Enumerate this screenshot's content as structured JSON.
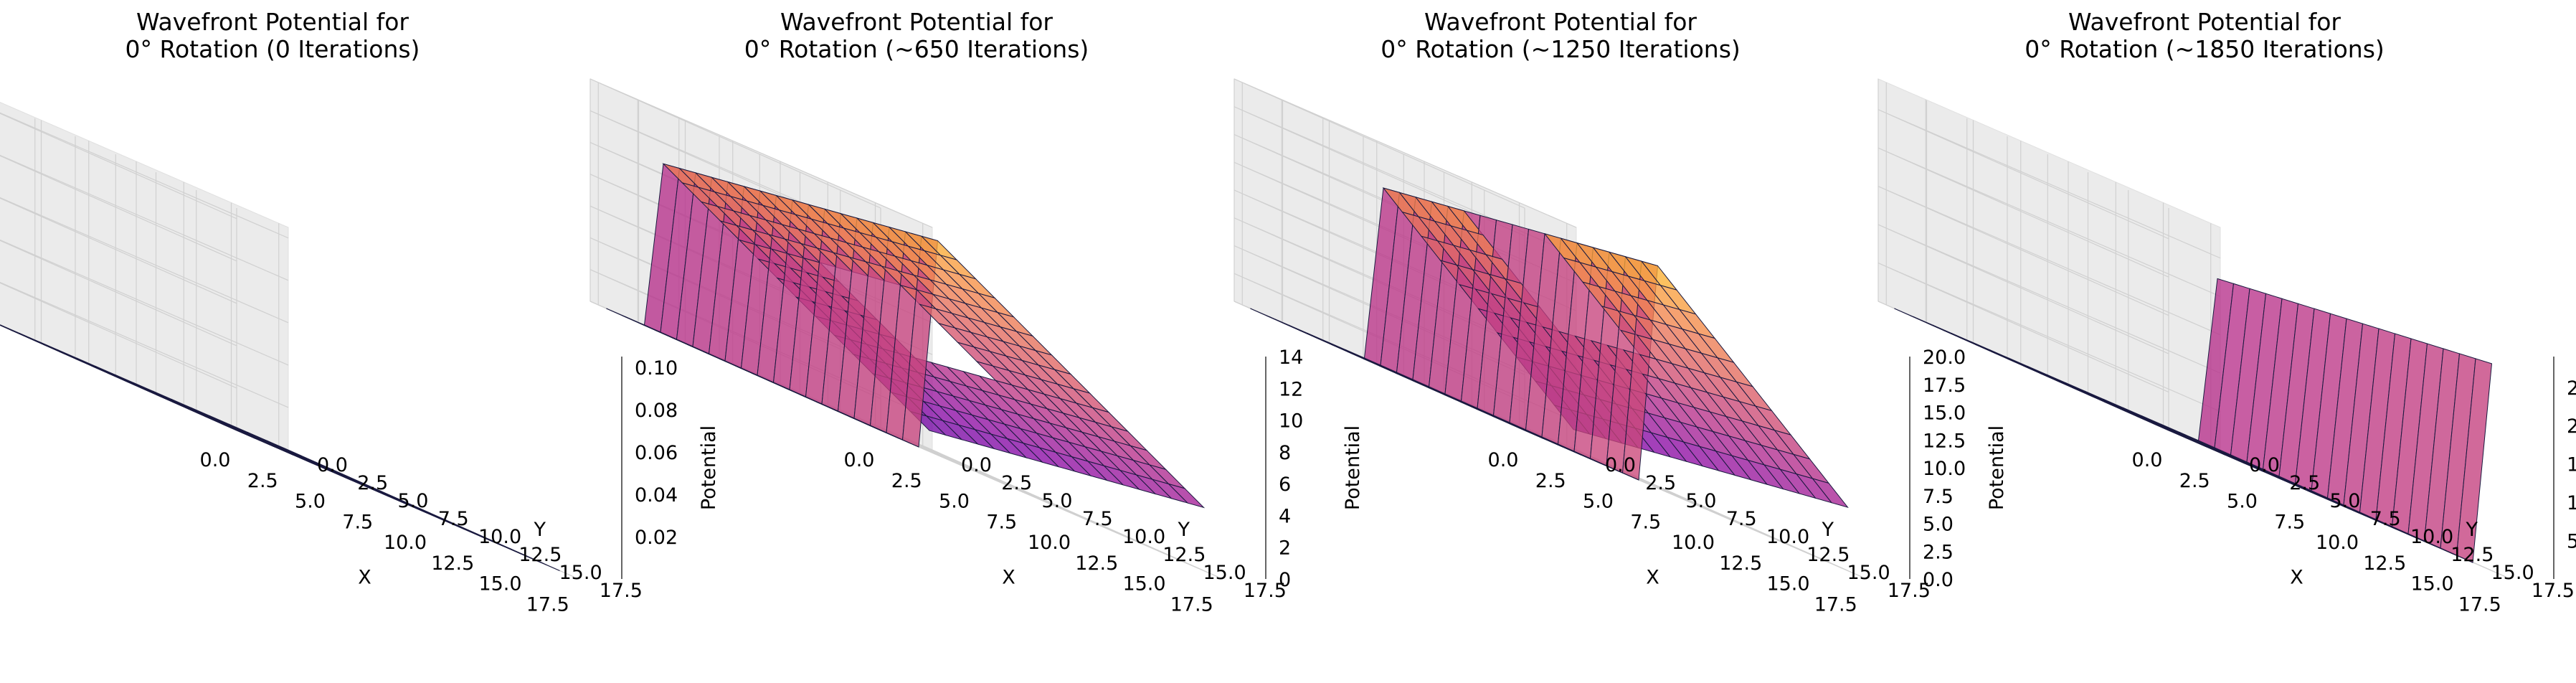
{
  "chart_data": [
    {
      "type": "surface3d",
      "title": "Wavefront Potential for\n0° Rotation (0 Iterations)",
      "xlabel": "X",
      "ylabel": "Y",
      "zlabel": "Potential",
      "xticks": [
        "0.0",
        "2.5",
        "5.0",
        "7.5",
        "10.0",
        "12.5",
        "15.0",
        "17.5"
      ],
      "yticks": [
        "0.0",
        "2.5",
        "5.0",
        "7.5",
        "10.0",
        "12.5",
        "15.0",
        "17.5"
      ],
      "zticks": [
        "0.02",
        "0.04",
        "0.06",
        "0.08",
        "0.10"
      ],
      "zlim": [
        0,
        0.105
      ],
      "obstacle": {
        "center": [
          9.5,
          9.5
        ],
        "radius": 2.2
      },
      "front": null
    },
    {
      "type": "surface3d",
      "title": "Wavefront Potential for\n0° Rotation (~650 Iterations)",
      "xlabel": "X",
      "ylabel": "Y",
      "zlabel": "Potential",
      "xticks": [
        "0.0",
        "2.5",
        "5.0",
        "7.5",
        "10.0",
        "12.5",
        "15.0",
        "17.5"
      ],
      "yticks": [
        "0.0",
        "2.5",
        "5.0",
        "7.5",
        "10.0",
        "12.5",
        "15.0",
        "17.5"
      ],
      "zticks": [
        "0",
        "2",
        "4",
        "6",
        "8",
        "10",
        "12",
        "14"
      ],
      "zlim": [
        0,
        14
      ],
      "obstacle": {
        "center": [
          9.5,
          9.5
        ],
        "radius": 2.2
      },
      "front": {
        "low": 1.5,
        "high": 13.5,
        "spread": 10,
        "frontRow": 3
      }
    },
    {
      "type": "surface3d",
      "title": "Wavefront Potential for\n0° Rotation (~1250 Iterations)",
      "xlabel": "X",
      "ylabel": "Y",
      "zlabel": "Potential",
      "xticks": [
        "0.0",
        "2.5",
        "5.0",
        "7.5",
        "10.0",
        "12.5",
        "15.0",
        "17.5"
      ],
      "yticks": [
        "0.0",
        "2.5",
        "5.0",
        "7.5",
        "10.0",
        "12.5",
        "15.0",
        "17.5"
      ],
      "zticks": [
        "0.0",
        "2.5",
        "5.0",
        "7.5",
        "10.0",
        "12.5",
        "15.0",
        "17.5",
        "20.0"
      ],
      "zlim": [
        0,
        20
      ],
      "obstacle": {
        "center": [
          9.5,
          9.5
        ],
        "radius": 2.2
      },
      "front": {
        "low": 1.5,
        "high": 20,
        "spread": 14,
        "frontRow": 7
      }
    },
    {
      "type": "surface3d",
      "title": "Wavefront Potential for\n0° Rotation (~1850 Iterations)",
      "xlabel": "X",
      "ylabel": "Y",
      "zlabel": "Potential",
      "xticks": [
        "0.0",
        "2.5",
        "5.0",
        "7.5",
        "10.0",
        "12.5",
        "15.0",
        "17.5"
      ],
      "yticks": [
        "0.0",
        "2.5",
        "5.0",
        "7.5",
        "10.0",
        "12.5",
        "15.0",
        "17.5"
      ],
      "zticks": [
        "5",
        "10",
        "15",
        "20",
        "25"
      ],
      "zlim": [
        0,
        29
      ],
      "obstacle": {
        "center": [
          9.5,
          9.5
        ],
        "radius": 2.2
      },
      "front": {
        "low": 1.5,
        "high": 27,
        "spread": 17,
        "frontRow": 17
      }
    }
  ]
}
